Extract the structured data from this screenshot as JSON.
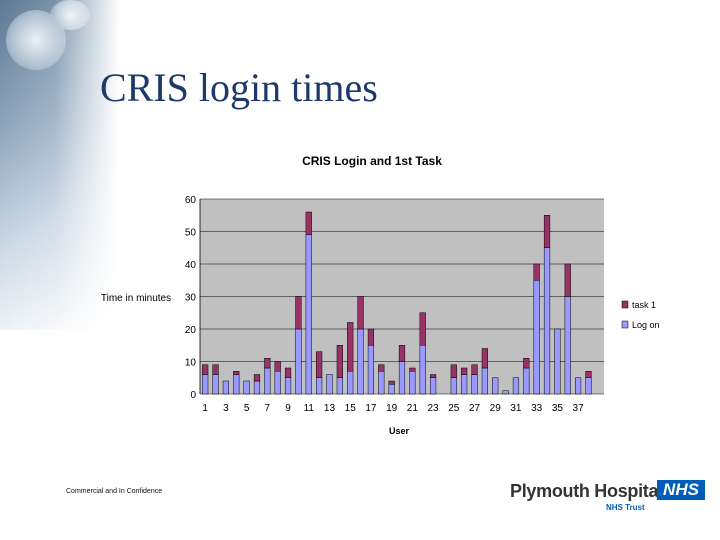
{
  "slide": {
    "title": "CRIS login times",
    "footer": "Commercial and In Confidence"
  },
  "logo": {
    "name": "Plymouth Hospitals",
    "badge": "NHS",
    "subtitle": "NHS Trust",
    "badge_color": "#005eb8"
  },
  "chart_data": {
    "type": "bar",
    "stacked": true,
    "title": "CRIS Login and 1st Task",
    "xlabel": "User",
    "ylabel": "Time in minutes",
    "ylim": [
      0,
      60
    ],
    "yticks": [
      0,
      10,
      20,
      30,
      40,
      50,
      60
    ],
    "xticks": [
      "1",
      "3",
      "5",
      "7",
      "9",
      "11",
      "13",
      "15",
      "17",
      "19",
      "21",
      "23",
      "25",
      "27",
      "29",
      "31",
      "33",
      "35",
      "37"
    ],
    "categories": [
      "1",
      "2",
      "3",
      "4",
      "5",
      "6",
      "7",
      "8",
      "9",
      "10",
      "11",
      "12",
      "13",
      "14",
      "15",
      "16",
      "17",
      "18",
      "19",
      "20",
      "21",
      "22",
      "23",
      "24",
      "25",
      "26",
      "27",
      "28",
      "29",
      "30",
      "31",
      "32",
      "33",
      "34",
      "35",
      "36",
      "37",
      "38",
      "39"
    ],
    "series": [
      {
        "name": "Log on",
        "color": "#9999ff",
        "values": [
          6,
          6,
          4,
          6,
          4,
          4,
          8,
          7,
          5,
          20,
          49,
          5,
          6,
          5,
          7,
          20,
          15,
          7,
          3,
          10,
          7,
          15,
          5,
          0,
          5,
          6,
          6,
          8,
          5,
          1,
          5,
          8,
          35,
          45,
          20,
          30,
          5,
          5,
          0
        ]
      },
      {
        "name": "task 1",
        "color": "#993366",
        "values": [
          3,
          3,
          0,
          1,
          0,
          2,
          3,
          3,
          3,
          10,
          7,
          8,
          0,
          10,
          15,
          10,
          5,
          2,
          1,
          5,
          1,
          10,
          1,
          0,
          4,
          2,
          3,
          6,
          0,
          0,
          0,
          3,
          5,
          10,
          0,
          10,
          0,
          2,
          0
        ]
      }
    ],
    "legend": "right",
    "grid": "horizontal",
    "plot_background": "#c0c0c0"
  }
}
